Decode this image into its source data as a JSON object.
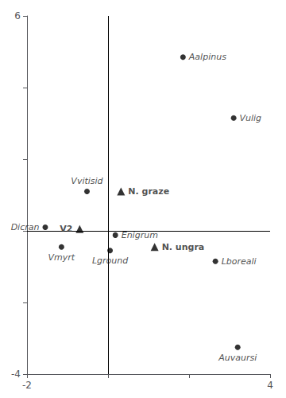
{
  "chart_data": {
    "type": "scatter",
    "xlim": [
      -2,
      4
    ],
    "ylim": [
      -4,
      6
    ],
    "xticks": [
      -2,
      {
        "value": 0,
        "label": null
      },
      {
        "value": 2,
        "label": null
      },
      4
    ],
    "yticks": [
      -4,
      {
        "value": -2,
        "label": null
      },
      {
        "value": 0,
        "label": null
      },
      {
        "value": 2,
        "label": null
      },
      {
        "value": 4,
        "label": null
      },
      6
    ],
    "grid": false,
    "series": [
      {
        "marker": "triangle",
        "color": "#000000",
        "x": [
          -0.7,
          0.32,
          1.15
        ],
        "values": [
          0.05,
          1.1,
          -0.45
        ],
        "labels": [
          "V2",
          "N. graze",
          "N. ungra"
        ]
      },
      {
        "marker": "circle",
        "color": "#000000",
        "x": [
          1.85,
          3.1,
          -0.52,
          -1.55,
          -1.15,
          0.18,
          0.05,
          2.65,
          3.2
        ],
        "values": [
          4.85,
          3.15,
          1.1,
          0.1,
          -0.45,
          -0.12,
          -0.55,
          -0.85,
          -3.25
        ],
        "labels": [
          "Aalpinus",
          "Vulig",
          "Vvitisid",
          "Dicran",
          "Vmyrt",
          "Enigrum",
          "Lground",
          "Lboreali",
          "Auvaursi"
        ]
      }
    ]
  }
}
